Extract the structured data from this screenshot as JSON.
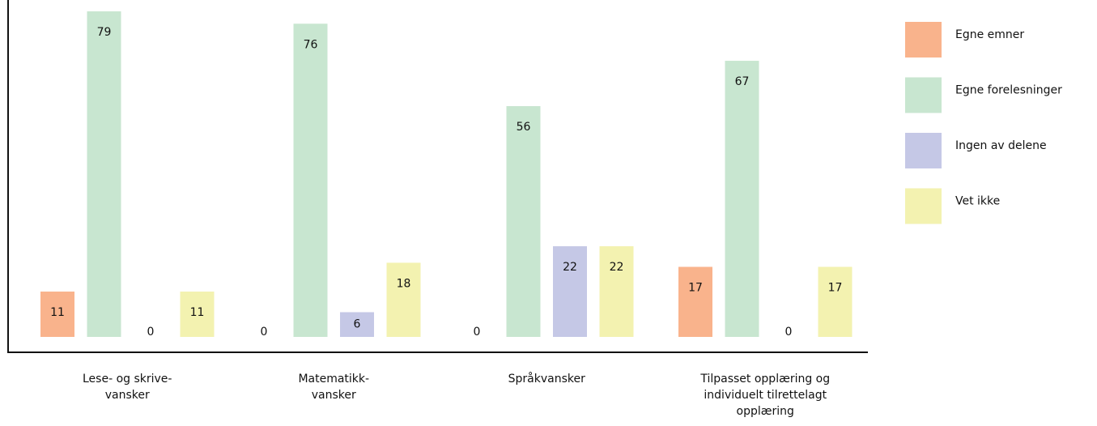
{
  "chart_data": {
    "type": "bar",
    "categories": [
      "Lese- og skrive-vansker",
      "Matematikk-vansker",
      "Språkvansker",
      "Tilpasset opplæring og individuelt tilrettelagt opplæring"
    ],
    "series": [
      {
        "name": "Egne emner",
        "color": "#f9b38c",
        "values": [
          11,
          0,
          0,
          17
        ]
      },
      {
        "name": "Egne forelesninger",
        "color": "#c8e6d0",
        "values": [
          79,
          76,
          56,
          67
        ]
      },
      {
        "name": "Ingen av delene",
        "color": "#c5c8e6",
        "values": [
          0,
          6,
          22,
          0
        ]
      },
      {
        "name": "Vet ikke",
        "color": "#f3f2b0",
        "values": [
          11,
          18,
          22,
          17
        ]
      }
    ],
    "legend": "right"
  }
}
